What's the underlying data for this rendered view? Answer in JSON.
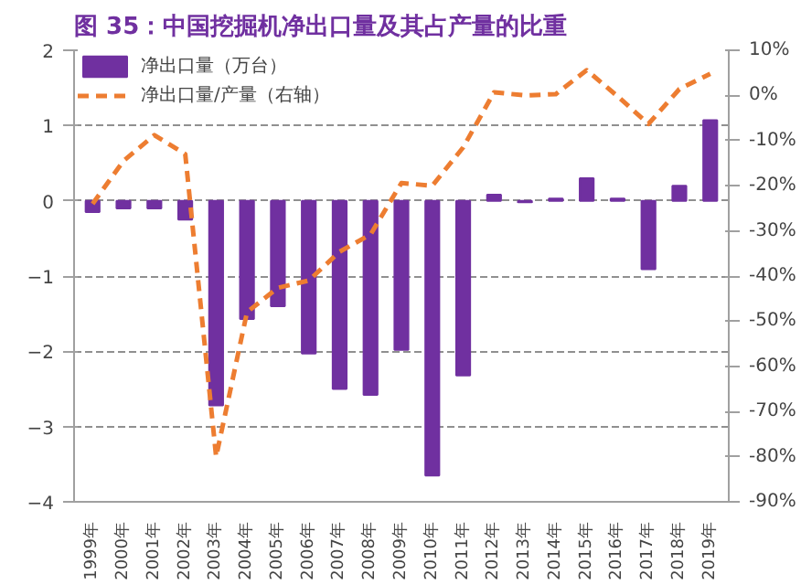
{
  "chart_data": {
    "type": "bar",
    "title": "图 35：中国挖掘机净出口量及其占产量的比重",
    "categories": [
      "1999年",
      "2000年",
      "2001年",
      "2002年",
      "2003年",
      "2004年",
      "2005年",
      "2006年",
      "2007年",
      "2008年",
      "2009年",
      "2010年",
      "2011年",
      "2012年",
      "2013年",
      "2014年",
      "2015年",
      "2016年",
      "2017年",
      "2018年",
      "2019年"
    ],
    "series": [
      {
        "name": "净出口量（万台）",
        "color": "#7030a0",
        "values": [
          -0.15,
          -0.1,
          -0.1,
          -0.25,
          -2.72,
          -1.57,
          -1.4,
          -2.03,
          -2.5,
          -2.58,
          -1.98,
          -3.65,
          -2.32,
          0.08,
          -0.02,
          0.03,
          0.3,
          0.03,
          -0.91,
          0.2,
          1.07
        ]
      },
      {
        "name": "净出口量/产量（右轴）",
        "type": "line",
        "axis": "y2",
        "color": "#ed7d31",
        "line_style": "dashed",
        "values": [
          -24,
          -14.5,
          -8.8,
          -13,
          -80,
          -48,
          -42.6,
          -41,
          -34.6,
          -30.8,
          -19.4,
          -20,
          -11.5,
          0.7,
          0,
          0.3,
          5.6,
          -0.2,
          -6.3,
          1.4,
          4.8
        ]
      }
    ],
    "ylim": [
      -4,
      2
    ],
    "yticks": [
      -4,
      -3,
      -2,
      -1,
      0,
      1,
      2
    ],
    "y2lim": [
      -90,
      10
    ],
    "y2ticks": [
      {
        "value": -90,
        "label": "-90%"
      },
      {
        "value": -80,
        "label": "-80%"
      },
      {
        "value": -70,
        "label": "-70%"
      },
      {
        "value": -60,
        "label": "-60%"
      },
      {
        "value": -50,
        "label": "-50%"
      },
      {
        "value": -40,
        "label": "-40%"
      },
      {
        "value": -30,
        "label": "-30%"
      },
      {
        "value": -20,
        "label": "-20%"
      },
      {
        "value": -10,
        "label": "-10%"
      },
      {
        "value": 0,
        "label": "0%"
      },
      {
        "value": 10,
        "label": "10%"
      }
    ],
    "grid": "y",
    "legend": "top left"
  }
}
